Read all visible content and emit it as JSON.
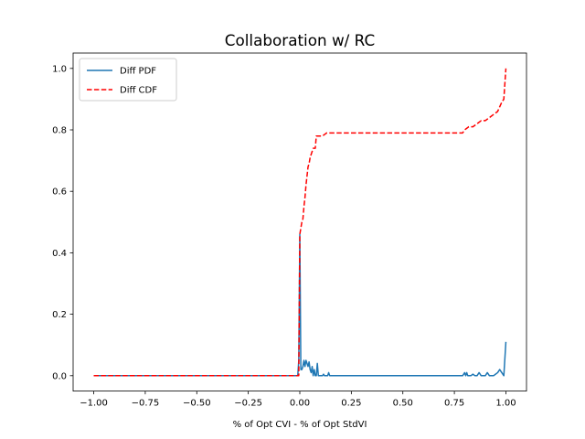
{
  "chart_data": {
    "type": "line",
    "title": "Collaboration w/ RC",
    "xlabel": "% of Opt CVI - % of Opt StdVI",
    "ylabel": "",
    "xlim": [
      -1.1,
      1.1
    ],
    "ylim": [
      -0.05,
      1.05
    ],
    "xticks": [
      -1.0,
      -0.75,
      -0.5,
      -0.25,
      0.0,
      0.25,
      0.5,
      0.75,
      1.0
    ],
    "xtick_labels": [
      "−1.00",
      "−0.75",
      "−0.50",
      "−0.25",
      "0.00",
      "0.25",
      "0.50",
      "0.75",
      "1.00"
    ],
    "yticks": [
      0.0,
      0.2,
      0.4,
      0.6,
      0.8,
      1.0
    ],
    "ytick_labels": [
      "0.0",
      "0.2",
      "0.4",
      "0.6",
      "0.8",
      "1.0"
    ],
    "grid": false,
    "legend_position": "top-left",
    "series": [
      {
        "name": "Diff PDF",
        "color": "#1f77b4",
        "dash": "solid",
        "x": [
          -1.0,
          -0.5,
          -0.01,
          -0.005,
          0.0,
          0.005,
          0.01,
          0.015,
          0.02,
          0.025,
          0.03,
          0.035,
          0.04,
          0.045,
          0.05,
          0.055,
          0.06,
          0.065,
          0.07,
          0.075,
          0.08,
          0.085,
          0.09,
          0.095,
          0.1,
          0.105,
          0.11,
          0.115,
          0.12,
          0.125,
          0.13,
          0.135,
          0.14,
          0.145,
          0.15,
          0.16,
          0.5,
          0.79,
          0.8,
          0.805,
          0.81,
          0.815,
          0.82,
          0.83,
          0.84,
          0.85,
          0.86,
          0.87,
          0.88,
          0.89,
          0.9,
          0.91,
          0.92,
          0.93,
          0.94,
          0.95,
          0.96,
          0.97,
          0.98,
          0.99,
          1.0
        ],
        "y": [
          0.0,
          0.0,
          0.0,
          0.05,
          0.46,
          0.02,
          0.02,
          0.03,
          0.05,
          0.03,
          0.05,
          0.04,
          0.03,
          0.045,
          0.02,
          0.01,
          0.03,
          0.0,
          0.02,
          0.0,
          0.0,
          0.04,
          0.0,
          0.0,
          0.0,
          0.0,
          0.0,
          0.005,
          0.0,
          0.0,
          0.0,
          0.0,
          0.01,
          0.0,
          0.0,
          0.0,
          0.0,
          0.0,
          0.01,
          0.0,
          0.01,
          0.0,
          0.0,
          0.0,
          0.005,
          0.0,
          0.0,
          0.01,
          0.0,
          0.0,
          0.0,
          0.01,
          0.0,
          0.0,
          0.0,
          0.005,
          0.01,
          0.02,
          0.01,
          0.0,
          0.11
        ]
      },
      {
        "name": "Diff CDF",
        "color": "#ff0000",
        "dash": "dashed",
        "x": [
          -1.0,
          -0.5,
          -0.005,
          0.0,
          0.005,
          0.01,
          0.015,
          0.02,
          0.025,
          0.03,
          0.035,
          0.04,
          0.045,
          0.05,
          0.055,
          0.06,
          0.065,
          0.07,
          0.075,
          0.08,
          0.085,
          0.09,
          0.095,
          0.1,
          0.11,
          0.12,
          0.13,
          0.15,
          0.2,
          0.5,
          0.79,
          0.8,
          0.82,
          0.84,
          0.86,
          0.88,
          0.9,
          0.92,
          0.94,
          0.96,
          0.98,
          0.99,
          1.0
        ],
        "y": [
          0.0,
          0.0,
          0.0,
          0.46,
          0.48,
          0.5,
          0.51,
          0.55,
          0.58,
          0.62,
          0.65,
          0.68,
          0.69,
          0.71,
          0.72,
          0.73,
          0.74,
          0.74,
          0.74,
          0.78,
          0.78,
          0.78,
          0.78,
          0.78,
          0.78,
          0.785,
          0.79,
          0.79,
          0.79,
          0.79,
          0.79,
          0.8,
          0.81,
          0.81,
          0.82,
          0.83,
          0.83,
          0.84,
          0.85,
          0.86,
          0.89,
          0.9,
          1.0
        ]
      }
    ]
  }
}
